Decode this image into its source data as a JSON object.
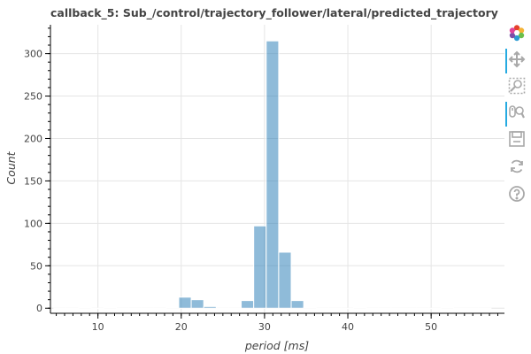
{
  "title": "callback_5: Sub_/control/trajectory_follower/lateral/predicted_trajectory",
  "toolbar": {
    "tools": [
      {
        "name": "bokeh-logo-icon",
        "active": false
      },
      {
        "name": "pan-tool-icon",
        "active": true
      },
      {
        "name": "box-zoom-tool-icon",
        "active": false
      },
      {
        "name": "wheel-zoom-tool-icon",
        "active": true
      },
      {
        "name": "save-tool-icon",
        "active": false
      },
      {
        "name": "reset-tool-icon",
        "active": false
      },
      {
        "name": "help-tool-icon",
        "active": false
      }
    ]
  },
  "chart_data": {
    "type": "bar",
    "title": "callback_5: Sub_/control/trajectory_follower/lateral/predicted_trajectory",
    "xlabel": "period [ms]",
    "ylabel": "Count",
    "xlim": [
      4.3,
      58.8
    ],
    "ylim": [
      -6,
      334
    ],
    "x_ticks": [
      10,
      20,
      30,
      40,
      50
    ],
    "y_ticks": [
      0,
      50,
      100,
      150,
      200,
      250,
      300
    ],
    "bar_color": "#1f77b4",
    "bin_width": 1.5,
    "bins": [
      {
        "start": 4.7,
        "count": 0
      },
      {
        "start": 6.2,
        "count": 0
      },
      {
        "start": 7.7,
        "count": 1
      },
      {
        "start": 9.2,
        "count": 0
      },
      {
        "start": 10.7,
        "count": 1
      },
      {
        "start": 12.2,
        "count": 0
      },
      {
        "start": 13.7,
        "count": 0
      },
      {
        "start": 15.2,
        "count": 0
      },
      {
        "start": 16.7,
        "count": 0
      },
      {
        "start": 18.2,
        "count": 1
      },
      {
        "start": 19.7,
        "count": 13
      },
      {
        "start": 21.2,
        "count": 10
      },
      {
        "start": 22.7,
        "count": 2
      },
      {
        "start": 24.2,
        "count": 0
      },
      {
        "start": 25.7,
        "count": 0
      },
      {
        "start": 27.2,
        "count": 9
      },
      {
        "start": 28.7,
        "count": 97
      },
      {
        "start": 30.2,
        "count": 315
      },
      {
        "start": 31.7,
        "count": 66
      },
      {
        "start": 33.2,
        "count": 9
      },
      {
        "start": 34.7,
        "count": 1
      },
      {
        "start": 36.2,
        "count": 0
      },
      {
        "start": 37.7,
        "count": 0
      },
      {
        "start": 39.2,
        "count": 0
      },
      {
        "start": 40.7,
        "count": 1
      },
      {
        "start": 42.2,
        "count": 0
      },
      {
        "start": 43.7,
        "count": 0
      },
      {
        "start": 45.2,
        "count": 0
      },
      {
        "start": 46.7,
        "count": 0
      },
      {
        "start": 48.2,
        "count": 0
      },
      {
        "start": 49.7,
        "count": 0
      },
      {
        "start": 51.2,
        "count": 1
      },
      {
        "start": 52.7,
        "count": 0
      },
      {
        "start": 54.2,
        "count": 0
      },
      {
        "start": 55.7,
        "count": 0
      }
    ],
    "grid": true,
    "legend": "none"
  }
}
